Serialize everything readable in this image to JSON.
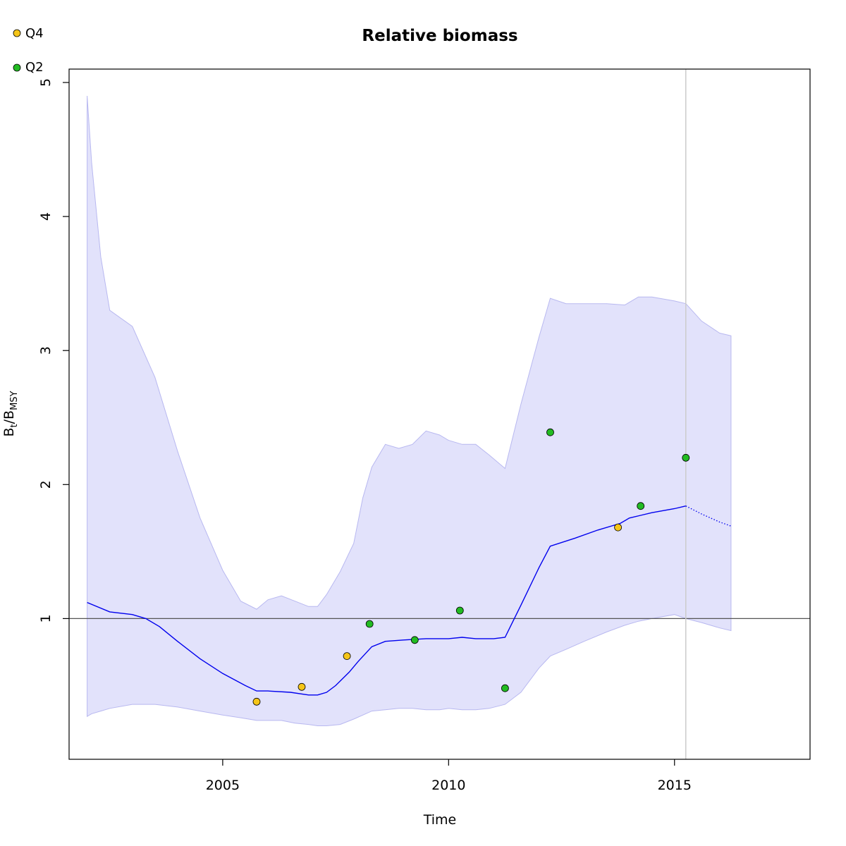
{
  "chart_data": {
    "type": "line",
    "title": "Relative biomass",
    "xlabel": "Time",
    "ylabel": "B_t/B_MSY",
    "ylabel_parts": {
      "base1": "B",
      "sub1": "t",
      "sep": "/",
      "base2": "B",
      "sub2": "MSY"
    },
    "xlim": [
      2001.6,
      2018.0
    ],
    "ylim": [
      -0.05,
      5.1
    ],
    "xticks": [
      2005,
      2010,
      2015
    ],
    "yticks": [
      1,
      2,
      3,
      4,
      5
    ],
    "reference_line_y": 1,
    "vertical_line_x": 2015.25,
    "grid": false,
    "legend_position": "top-left",
    "colors": {
      "ci_fill": "#e2e2fb",
      "ci_edge": "#b8b8f0",
      "line": "#0000ee",
      "reference": "#555555",
      "vline": "#cccccc",
      "Q4": "#f5c518",
      "Q2": "#22bb22"
    },
    "series": [
      {
        "type": "line",
        "x": [
          2002.0,
          2002.5,
          2003.0,
          2003.3,
          2003.6,
          2004.0,
          2004.5,
          2005.0,
          2005.5,
          2005.75,
          2006.0,
          2006.5,
          2006.9,
          2007.1,
          2007.3,
          2007.5,
          2007.8,
          2008.0,
          2008.3,
          2008.6,
          2009.0,
          2009.5,
          2010.0,
          2010.3,
          2010.6,
          2011.0,
          2011.25,
          2011.6,
          2012.0,
          2012.25,
          2012.8,
          2013.3,
          2013.8,
          2014.0,
          2014.25,
          2014.5,
          2015.0,
          2015.25
        ],
        "y": [
          1.12,
          1.05,
          1.03,
          1.0,
          0.94,
          0.83,
          0.7,
          0.59,
          0.5,
          0.46,
          0.46,
          0.45,
          0.43,
          0.43,
          0.45,
          0.5,
          0.6,
          0.68,
          0.79,
          0.83,
          0.84,
          0.85,
          0.85,
          0.86,
          0.85,
          0.85,
          0.86,
          1.1,
          1.38,
          1.54,
          1.6,
          1.66,
          1.71,
          1.75,
          1.77,
          1.79,
          1.82,
          1.84
        ]
      },
      {
        "type": "projection",
        "x": [
          2015.25,
          2015.6,
          2016.0,
          2016.25
        ],
        "y": [
          1.84,
          1.78,
          1.72,
          1.69
        ]
      },
      {
        "type": "ci",
        "x": [
          2002.0,
          2002.1,
          2002.3,
          2002.5,
          2003.0,
          2003.5,
          2004.0,
          2004.5,
          2005.0,
          2005.4,
          2005.75,
          2006.0,
          2006.3,
          2006.6,
          2006.9,
          2007.1,
          2007.3,
          2007.6,
          2007.9,
          2008.1,
          2008.3,
          2008.6,
          2008.9,
          2009.2,
          2009.5,
          2009.8,
          2010.0,
          2010.3,
          2010.6,
          2010.9,
          2011.25,
          2011.6,
          2012.0,
          2012.25,
          2012.6,
          2013.0,
          2013.5,
          2013.9,
          2014.2,
          2014.5,
          2015.0,
          2015.25,
          2015.6,
          2016.0,
          2016.25
        ],
        "upper": [
          4.9,
          4.4,
          3.7,
          3.3,
          3.18,
          2.8,
          2.25,
          1.75,
          1.36,
          1.13,
          1.07,
          1.14,
          1.17,
          1.13,
          1.09,
          1.09,
          1.18,
          1.35,
          1.56,
          1.9,
          2.13,
          2.3,
          2.27,
          2.3,
          2.4,
          2.37,
          2.33,
          2.3,
          2.3,
          2.22,
          2.12,
          2.6,
          3.1,
          3.39,
          3.35,
          3.35,
          3.35,
          3.34,
          3.4,
          3.4,
          3.37,
          3.35,
          3.22,
          3.13,
          3.11
        ],
        "lower": [
          0.27,
          0.29,
          0.31,
          0.33,
          0.36,
          0.36,
          0.34,
          0.31,
          0.28,
          0.26,
          0.24,
          0.24,
          0.24,
          0.22,
          0.21,
          0.2,
          0.2,
          0.21,
          0.25,
          0.28,
          0.31,
          0.32,
          0.33,
          0.33,
          0.32,
          0.32,
          0.33,
          0.32,
          0.32,
          0.33,
          0.36,
          0.45,
          0.63,
          0.72,
          0.77,
          0.83,
          0.9,
          0.95,
          0.98,
          1.0,
          1.03,
          1.0,
          0.97,
          0.93,
          0.91
        ]
      },
      {
        "name": "Q4",
        "type": "scatter",
        "points": [
          [
            2005.75,
            0.38
          ],
          [
            2006.75,
            0.49
          ],
          [
            2007.75,
            0.72
          ],
          [
            2013.75,
            1.68
          ]
        ]
      },
      {
        "name": "Q2",
        "type": "scatter",
        "points": [
          [
            2008.25,
            0.96
          ],
          [
            2009.25,
            0.84
          ],
          [
            2010.25,
            1.06
          ],
          [
            2011.25,
            0.48
          ],
          [
            2012.25,
            2.39
          ],
          [
            2014.25,
            1.84
          ],
          [
            2015.25,
            2.2
          ]
        ]
      }
    ]
  },
  "legend": [
    {
      "label": "Q4",
      "color": "#f5c518"
    },
    {
      "label": "Q2",
      "color": "#22bb22"
    }
  ]
}
